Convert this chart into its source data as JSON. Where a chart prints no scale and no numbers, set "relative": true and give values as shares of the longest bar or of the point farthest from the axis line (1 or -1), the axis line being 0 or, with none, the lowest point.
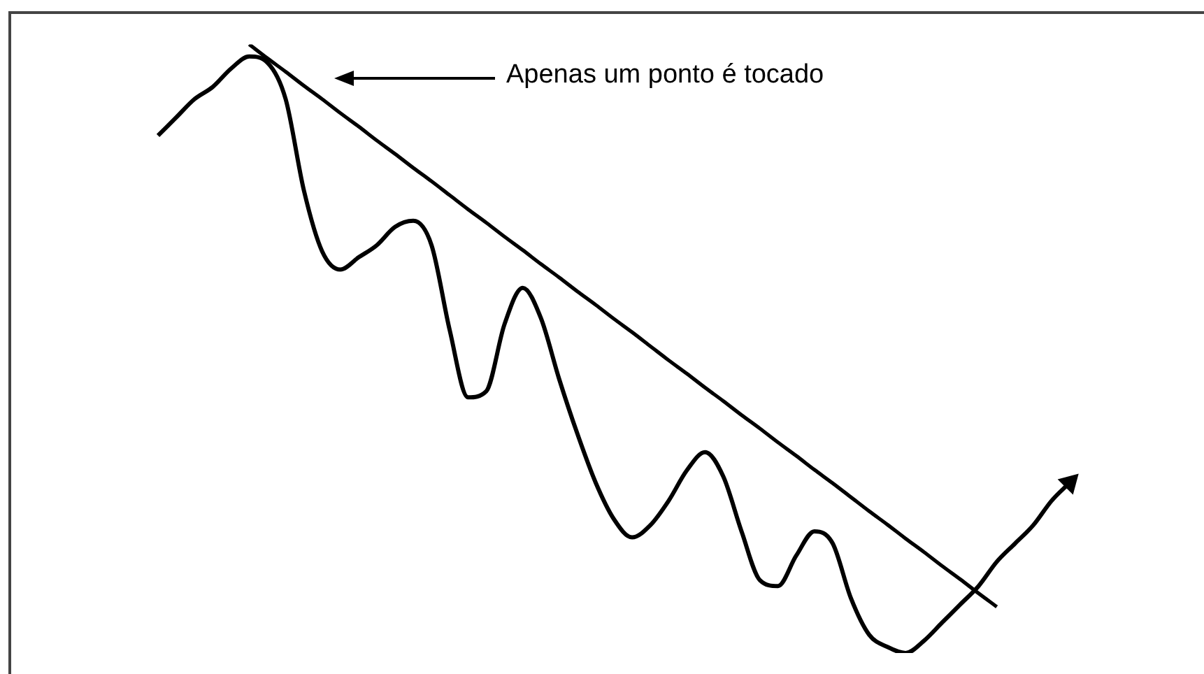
{
  "chart_data": {
    "type": "line",
    "relative": true,
    "marker": "none",
    "line_style": "solid",
    "categories": [
      null,
      null,
      null,
      null,
      null,
      null,
      null,
      null,
      null,
      null,
      null,
      null,
      null,
      null,
      null,
      null,
      null,
      null,
      null,
      null,
      null,
      null,
      null,
      null,
      null,
      null,
      null,
      null,
      null,
      null,
      null,
      null,
      null,
      null,
      null,
      null,
      null,
      null,
      null,
      null,
      null,
      null,
      null,
      null,
      null,
      null,
      null,
      null,
      null,
      null,
      null
    ],
    "series": [
      {
        "color": "#000000",
        "values": [
          0.85,
          0.88,
          0.91,
          0.93,
          0.96,
          0.98,
          0.97,
          0.91,
          0.76,
          0.66,
          0.63,
          0.65,
          0.67,
          0.7,
          0.71,
          0.67,
          0.53,
          0.42,
          0.43,
          0.54,
          0.6,
          0.55,
          0.45,
          0.36,
          0.28,
          0.22,
          0.19,
          0.21,
          0.25,
          0.3,
          0.33,
          0.29,
          0.2,
          0.12,
          0.11,
          0.16,
          0.2,
          0.18,
          0.09,
          0.03,
          0.01,
          0,
          0.02,
          0.05,
          0.08,
          0.11,
          0.15,
          0.18,
          0.21,
          0.25,
          0.28
        ]
      },
      {
        "type": "line",
        "color": "#000000",
        "values": [
          null,
          null,
          null,
          null,
          null,
          1,
          0.977,
          0.955,
          0.932,
          0.91,
          0.887,
          0.865,
          0.842,
          0.82,
          0.797,
          0.775,
          0.752,
          0.729,
          0.707,
          0.684,
          0.662,
          0.639,
          0.617,
          0.594,
          0.572,
          0.549,
          0.527,
          0.504,
          0.481,
          0.459,
          0.436,
          0.414,
          0.391,
          0.369,
          0.346,
          0.324,
          0.301,
          0.279,
          0.256,
          0.233,
          0.211,
          0.188,
          0.166,
          0.143,
          0.121,
          0.098,
          0.076,
          null,
          null,
          null,
          null
        ]
      }
    ],
    "annotations": [
      "Apenas um ponto é tocado"
    ]
  }
}
